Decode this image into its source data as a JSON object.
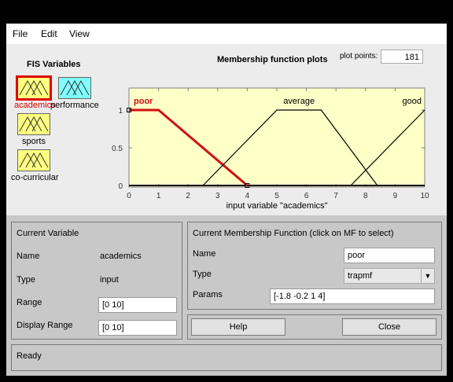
{
  "menu": {
    "file": "File",
    "edit": "Edit",
    "view": "View"
  },
  "fis": {
    "title": "FIS Variables",
    "variables": [
      {
        "label": "academics",
        "selected": true,
        "type": "input",
        "color": "#ffff80"
      },
      {
        "label": "performance",
        "selected": false,
        "type": "output",
        "color": "#80ffff"
      },
      {
        "label": "sports",
        "selected": false,
        "type": "input",
        "color": "#ffff80"
      },
      {
        "label": "co-curricular",
        "selected": false,
        "type": "input",
        "color": "#ffff80"
      }
    ],
    "selected_color": "#e00000"
  },
  "plot": {
    "title": "Membership function plots",
    "plot_points_label": "plot points:",
    "plot_points_value": "181",
    "xlabel": "input variable \"academics\"",
    "x_ticks": [
      "0",
      "1",
      "2",
      "3",
      "4",
      "5",
      "6",
      "7",
      "8",
      "9",
      "10"
    ],
    "y_ticks": [
      "0",
      "0.5",
      "1"
    ],
    "xlim": [
      0,
      10
    ],
    "ylim": [
      0,
      1
    ],
    "mfs": [
      {
        "name": "poor",
        "params": [
          -1.8,
          -0.2,
          1,
          4
        ],
        "selected": true,
        "color": "#d01010"
      },
      {
        "name": "average",
        "params": [
          2.5,
          5,
          6.5,
          8.4
        ],
        "selected": false,
        "color": "#000000"
      },
      {
        "name": "good",
        "params": [
          7.5,
          10,
          11,
          12
        ],
        "selected": false,
        "color": "#000000"
      }
    ]
  },
  "current_variable": {
    "title": "Current Variable",
    "name_label": "Name",
    "name_value": "academics",
    "type_label": "Type",
    "type_value": "input",
    "range_label": "Range",
    "range_value": "[0 10]",
    "display_range_label": "Display Range",
    "display_range_value": "[0 10]"
  },
  "current_mf": {
    "title": "Current Membership Function (click on MF to select)",
    "name_label": "Name",
    "name_value": "poor",
    "type_label": "Type",
    "type_value": "trapmf",
    "params_label": "Params",
    "params_value": "[-1.8 -0.2 1 4]"
  },
  "buttons": {
    "help": "Help",
    "close": "Close"
  },
  "status": "Ready"
}
